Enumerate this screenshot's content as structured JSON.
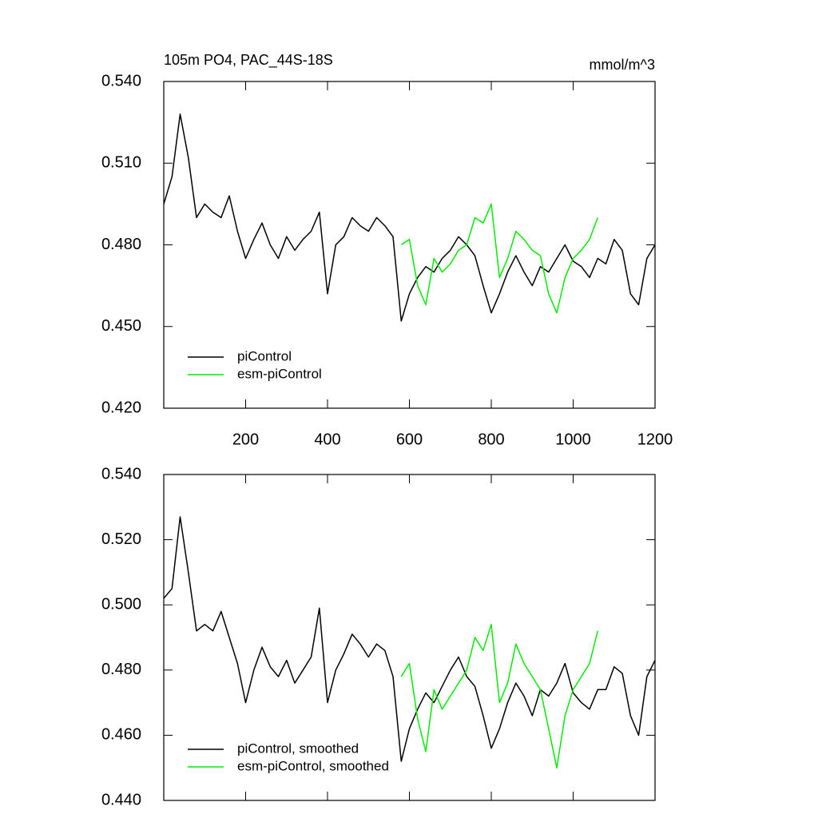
{
  "chart_data": [
    {
      "type": "line",
      "title": "105m PO4, PAC_44S-18S",
      "units": "mmol/m^3",
      "x": [
        0,
        20,
        40,
        60,
        80,
        100,
        120,
        140,
        160,
        180,
        200,
        220,
        240,
        260,
        280,
        300,
        320,
        340,
        360,
        380,
        400,
        420,
        440,
        460,
        480,
        500,
        520,
        540,
        560,
        580,
        600,
        620,
        640,
        660,
        680,
        700,
        720,
        740,
        760,
        780,
        800,
        820,
        840,
        860,
        880,
        900,
        920,
        940,
        960,
        980,
        1000,
        1020,
        1040,
        1060,
        1080,
        1100,
        1120,
        1140,
        1160,
        1180,
        1200
      ],
      "series": [
        {
          "name": "piControl",
          "color": "#000000",
          "values": [
            0.495,
            0.505,
            0.528,
            0.512,
            0.49,
            0.495,
            0.492,
            0.49,
            0.498,
            0.485,
            0.475,
            0.482,
            0.488,
            0.48,
            0.475,
            0.483,
            0.478,
            0.482,
            0.485,
            0.492,
            0.462,
            0.48,
            0.483,
            0.49,
            0.487,
            0.485,
            0.49,
            0.487,
            0.483,
            0.452,
            0.462,
            0.468,
            0.472,
            0.47,
            0.475,
            0.478,
            0.483,
            0.48,
            0.476,
            0.465,
            0.455,
            0.462,
            0.47,
            0.476,
            0.47,
            0.465,
            0.472,
            0.47,
            0.475,
            0.48,
            0.474,
            0.472,
            0.468,
            0.475,
            0.473,
            0.482,
            0.478,
            0.462,
            0.458,
            0.475,
            0.48
          ]
        },
        {
          "name": "esm-piControl",
          "color": "#00ee00",
          "values": [
            null,
            null,
            null,
            null,
            null,
            null,
            null,
            null,
            null,
            null,
            null,
            null,
            null,
            null,
            null,
            null,
            null,
            null,
            null,
            null,
            null,
            null,
            null,
            null,
            null,
            null,
            null,
            null,
            null,
            0.48,
            0.482,
            0.465,
            0.458,
            0.475,
            0.47,
            0.473,
            0.478,
            0.48,
            0.49,
            0.488,
            0.495,
            0.468,
            0.475,
            0.485,
            0.482,
            0.478,
            0.476,
            0.462,
            0.455,
            0.468,
            0.475,
            0.478,
            0.482,
            0.49,
            null,
            null,
            null,
            null,
            null,
            null,
            null
          ]
        }
      ],
      "xlim": [
        0,
        1200
      ],
      "xticks": [
        200,
        400,
        600,
        800,
        1000,
        1200
      ],
      "show_xtick_labels": true,
      "ylim": [
        0.42,
        0.54
      ],
      "yticks": [
        {
          "value": 0.42,
          "label": "0.420"
        },
        {
          "value": 0.45,
          "label": "0.450"
        },
        {
          "value": 0.48,
          "label": "0.480"
        },
        {
          "value": 0.51,
          "label": "0.510"
        },
        {
          "value": 0.54,
          "label": "0.540"
        }
      ],
      "legend": "lower left"
    },
    {
      "type": "line",
      "x": [
        0,
        20,
        40,
        60,
        80,
        100,
        120,
        140,
        160,
        180,
        200,
        220,
        240,
        260,
        280,
        300,
        320,
        340,
        360,
        380,
        400,
        420,
        440,
        460,
        480,
        500,
        520,
        540,
        560,
        580,
        600,
        620,
        640,
        660,
        680,
        700,
        720,
        740,
        760,
        780,
        800,
        820,
        840,
        860,
        880,
        900,
        920,
        940,
        960,
        980,
        1000,
        1020,
        1040,
        1060,
        1080,
        1100,
        1120,
        1140,
        1160,
        1180,
        1200
      ],
      "series": [
        {
          "name": "piControl, smoothed",
          "color": "#000000",
          "values": [
            0.502,
            0.505,
            0.527,
            0.51,
            0.492,
            0.494,
            0.492,
            0.498,
            0.49,
            0.482,
            0.47,
            0.48,
            0.487,
            0.481,
            0.478,
            0.483,
            0.476,
            0.48,
            0.484,
            0.499,
            0.47,
            0.48,
            0.485,
            0.491,
            0.488,
            0.484,
            0.488,
            0.486,
            0.478,
            0.452,
            0.462,
            0.468,
            0.473,
            0.47,
            0.475,
            0.48,
            0.484,
            0.478,
            0.475,
            0.466,
            0.456,
            0.462,
            0.47,
            0.476,
            0.472,
            0.466,
            0.474,
            0.472,
            0.476,
            0.482,
            0.473,
            0.47,
            0.468,
            0.474,
            0.474,
            0.481,
            0.479,
            0.466,
            0.46,
            0.478,
            0.483
          ]
        },
        {
          "name": "esm-piControl, smoothed",
          "color": "#00ee00",
          "values": [
            null,
            null,
            null,
            null,
            null,
            null,
            null,
            null,
            null,
            null,
            null,
            null,
            null,
            null,
            null,
            null,
            null,
            null,
            null,
            null,
            null,
            null,
            null,
            null,
            null,
            null,
            null,
            null,
            null,
            0.478,
            0.482,
            0.465,
            0.455,
            0.474,
            0.468,
            0.472,
            0.476,
            0.48,
            0.49,
            0.486,
            0.494,
            0.47,
            0.476,
            0.488,
            0.482,
            0.478,
            0.474,
            0.462,
            0.45,
            0.466,
            0.474,
            0.478,
            0.482,
            0.492,
            null,
            null,
            null,
            null,
            null,
            null,
            null
          ]
        }
      ],
      "xlim": [
        0,
        1200
      ],
      "xticks": [
        200,
        400,
        600,
        800,
        1000,
        1200
      ],
      "show_xtick_labels": false,
      "ylim": [
        0.44,
        0.54
      ],
      "yticks": [
        {
          "value": 0.44,
          "label": "0.440"
        },
        {
          "value": 0.46,
          "label": "0.460"
        },
        {
          "value": 0.48,
          "label": "0.480"
        },
        {
          "value": 0.5,
          "label": "0.500"
        },
        {
          "value": 0.52,
          "label": "0.520"
        },
        {
          "value": 0.54,
          "label": "0.540"
        }
      ],
      "legend": "lower left"
    }
  ]
}
